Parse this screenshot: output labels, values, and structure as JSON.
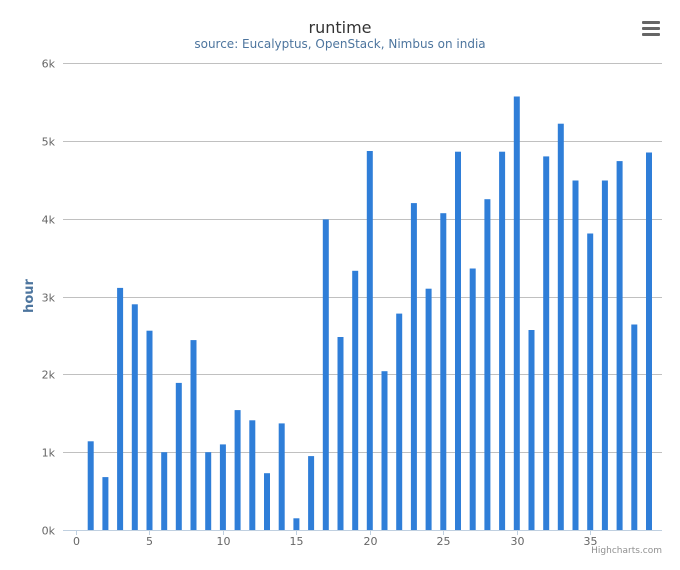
{
  "chart_data": {
    "type": "bar",
    "title": "runtime",
    "subtitle": "source: Eucalyptus, OpenStack, Nimbus on india",
    "ylabel": "hour",
    "xlabel": "",
    "credits": "Highcharts.com",
    "ylim": [
      0,
      6000
    ],
    "xlim": [
      0,
      39
    ],
    "y_ticks": [
      0,
      1000,
      2000,
      3000,
      4000,
      5000,
      6000
    ],
    "y_tick_labels": [
      "0k",
      "1k",
      "2k",
      "3k",
      "4k",
      "5k",
      "6k"
    ],
    "x_ticks": [
      0,
      5,
      10,
      15,
      20,
      25,
      30,
      35
    ],
    "x_tick_labels": [
      "0",
      "5",
      "10",
      "15",
      "20",
      "25",
      "30",
      "35"
    ],
    "grid": true,
    "bar_color": "#2f7ed8",
    "x": [
      1,
      2,
      3,
      4,
      5,
      6,
      7,
      8,
      9,
      10,
      11,
      12,
      13,
      14,
      15,
      16,
      17,
      18,
      19,
      20,
      21,
      22,
      23,
      24,
      25,
      26,
      27,
      28,
      29,
      30,
      31,
      32,
      33,
      34,
      35,
      36,
      37,
      38,
      39
    ],
    "values": [
      1140,
      680,
      3110,
      2900,
      2560,
      1000,
      1890,
      2440,
      1000,
      1100,
      1540,
      1410,
      730,
      1370,
      150,
      950,
      3990,
      2480,
      3330,
      4870,
      2040,
      2780,
      4200,
      3100,
      4070,
      4860,
      3360,
      4250,
      4860,
      5570,
      2570,
      4800,
      5220,
      4490,
      3810,
      4490,
      4740,
      2640,
      4850
    ]
  },
  "menu": {
    "icon": "hamburger-menu-icon"
  }
}
